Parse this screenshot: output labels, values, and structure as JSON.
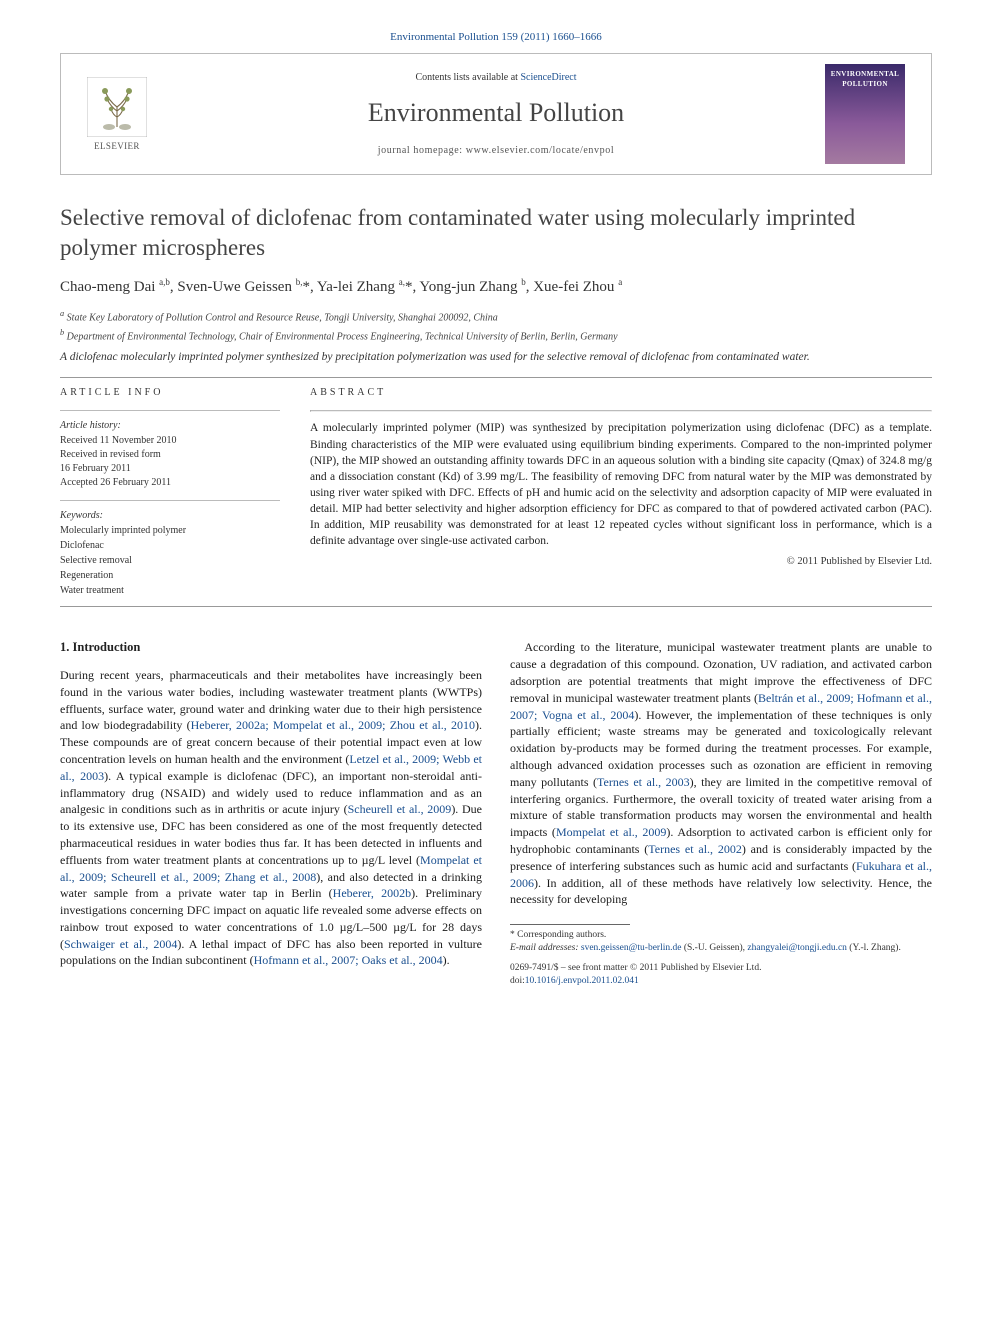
{
  "citation": "Environmental Pollution 159 (2011) 1660–1666",
  "header": {
    "contents_line_prefix": "Contents lists available at ",
    "contents_link": "ScienceDirect",
    "journal_name": "Environmental Pollution",
    "homepage_prefix": "journal homepage: ",
    "homepage_url": "www.elsevier.com/locate/envpol",
    "publisher_label": "ELSEVIER",
    "cover_line1": "ENVIRONMENTAL",
    "cover_line2": "POLLUTION"
  },
  "title": "Selective removal of diclofenac from contaminated water using molecularly imprinted polymer microspheres",
  "authors_html": "Chao-meng Dai <sup>a,b</sup>, Sven-Uwe Geissen <sup>b,</sup>*, Ya-lei Zhang <sup>a,</sup>*, Yong-jun Zhang <sup>b</sup>, Xue-fei Zhou <sup>a</sup>",
  "affiliations": [
    "a State Key Laboratory of Pollution Control and Resource Reuse, Tongji University, Shanghai 200092, China",
    "b Department of Environmental Technology, Chair of Environmental Process Engineering, Technical University of Berlin, Berlin, Germany"
  ],
  "highlight": "A diclofenac molecularly imprinted polymer synthesized by precipitation polymerization was used for the selective removal of diclofenac from contaminated water.",
  "article_info": {
    "label": "ARTICLE INFO",
    "history_head": "Article history:",
    "received": "Received 11 November 2010",
    "revised1": "Received in revised form",
    "revised2": "16 February 2011",
    "accepted": "Accepted 26 February 2011",
    "keywords_head": "Keywords:",
    "keywords": [
      "Molecularly imprinted polymer",
      "Diclofenac",
      "Selective removal",
      "Regeneration",
      "Water treatment"
    ]
  },
  "abstract": {
    "label": "ABSTRACT",
    "text": "A molecularly imprinted polymer (MIP) was synthesized by precipitation polymerization using diclofenac (DFC) as a template. Binding characteristics of the MIP were evaluated using equilibrium binding experiments. Compared to the non-imprinted polymer (NIP), the MIP showed an outstanding affinity towards DFC in an aqueous solution with a binding site capacity (Qmax) of 324.8 mg/g and a dissociation constant (Kd) of 3.99 mg/L. The feasibility of removing DFC from natural water by the MIP was demonstrated by using river water spiked with DFC. Effects of pH and humic acid on the selectivity and adsorption capacity of MIP were evaluated in detail. MIP had better selectivity and higher adsorption efficiency for DFC as compared to that of powdered activated carbon (PAC). In addition, MIP reusability was demonstrated for at least 12 repeated cycles without significant loss in performance, which is a definite advantage over single-use activated carbon.",
    "copyright": "© 2011 Published by Elsevier Ltd."
  },
  "section_head": "1. Introduction",
  "body": {
    "p1a": "During recent years, pharmaceuticals and their metabolites have increasingly been found in the various water bodies, including wastewater treatment plants (WWTPs) effluents, surface water, ground water and drinking water due to their high persistence and low biodegradability (",
    "p1r1": "Heberer, 2002a; Mompelat et al., 2009; Zhou et al., 2010",
    "p1b": "). These compounds are of great concern because of their potential impact even at low concentration levels on human health and the environment (",
    "p1r2": "Letzel et al., 2009; Webb et al., 2003",
    "p1c": "). A typical example is diclofenac (DFC), an important non-steroidal anti-inflammatory drug (NSAID) and widely used to reduce inflammation and as an analgesic in conditions such as in arthritis or acute injury (",
    "p1r3": "Scheurell et al., 2009",
    "p1d": "). Due to its extensive use, DFC has been considered as one of the most frequently detected pharmaceutical residues in water bodies thus far. It has been detected in influents and effluents from water treatment plants at concentrations up to µg/L level (",
    "p1r4": "Mompelat et al., 2009; Scheurell et al., 2009; Zhang et al., 2008",
    "p1e": "), and also detected in a drinking water sample from a private water tap in Berlin (",
    "p1r5": "Heberer, 2002b",
    "p1f": "). Preliminary investigations concerning DFC impact on aquatic life revealed some adverse effects on rainbow trout exposed to water concentrations of 1.0 µg/L–500 µg/L for 28 days (",
    "p1r6": "Schwaiger et al., 2004",
    "p1g": "). A lethal impact of DFC has also been reported in vulture populations on the Indian subcontinent (",
    "p1r7": "Hofmann et al., 2007; Oaks et al., 2004",
    "p1h": ").",
    "p2a": "According to the literature, municipal wastewater treatment plants are unable to cause a degradation of this compound. Ozonation, UV radiation, and activated carbon adsorption are potential treatments that might improve the effectiveness of DFC removal in municipal wastewater treatment plants (",
    "p2r1": "Beltrán et al., 2009; Hofmann et al., 2007; Vogna et al., 2004",
    "p2b": "). However, the implementation of these techniques is only partially efficient; waste streams may be generated and toxicologically relevant oxidation by-products may be formed during the treatment processes. For example, although advanced oxidation processes such as ozonation are efficient in removing many pollutants (",
    "p2r2": "Ternes et al., 2003",
    "p2c": "), they are limited in the competitive removal of interfering organics. Furthermore, the overall toxicity of treated water arising from a mixture of stable transformation products may worsen the environmental and health impacts (",
    "p2r3": "Mompelat et al., 2009",
    "p2d": "). Adsorption to activated carbon is efficient only for hydrophobic contaminants (",
    "p2r4": "Ternes et al., 2002",
    "p2e": ") and is considerably impacted by the presence of interfering substances such as humic acid and surfactants (",
    "p2r5": "Fukuhara et al., 2006",
    "p2f": "). In addition, all of these methods have relatively low selectivity. Hence, the necessity for developing"
  },
  "footnotes": {
    "corr": "* Corresponding authors.",
    "email_label": "E-mail addresses: ",
    "email1": "sven.geissen@tu-berlin.de",
    "email1_aff": " (S.-U. Geissen), ",
    "email2": "zhangyalei@tongji.edu.cn",
    "email2_aff": " (Y.-l. Zhang)."
  },
  "footer": {
    "line1": "0269-7491/$ – see front matter © 2011 Published by Elsevier Ltd.",
    "doi_prefix": "doi:",
    "doi": "10.1016/j.envpol.2011.02.041"
  },
  "colors": {
    "link": "#1a4f8f",
    "text": "#1a1a1a",
    "muted": "#555",
    "border": "#bbb",
    "cover_grad_top": "#3a2a6a",
    "cover_grad_bot": "#a47aa0"
  }
}
